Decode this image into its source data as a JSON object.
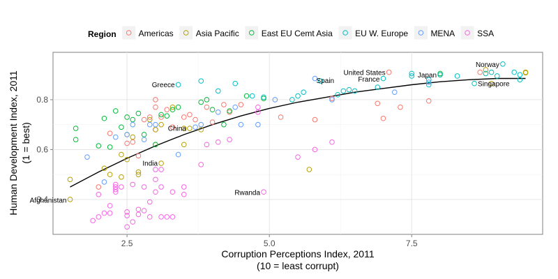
{
  "chart_data": {
    "type": "scatter",
    "xlabel": [
      "Corruption Perceptions Index, 2011",
      "(10 = least corrupt)"
    ],
    "ylabel": [
      "Human Development Index, 2011",
      "(1 = best)"
    ],
    "xlim": [
      1.2,
      9.8
    ],
    "ylim": [
      0.26,
      0.99
    ],
    "x_ticks": [
      2.5,
      5.0,
      7.5
    ],
    "x_tick_labels": [
      "2.5",
      "5.0",
      "7.5"
    ],
    "y_ticks": [
      0.4,
      0.6,
      0.8
    ],
    "y_tick_labels": [
      "0.4",
      "0.6",
      "0.8"
    ],
    "grid": true,
    "legend_placement": "top",
    "legend_title": "Region",
    "series": [
      {
        "name": "Americas",
        "color": "#F8766D",
        "points": [
          [
            2.2,
            0.665
          ],
          [
            2.5,
            0.625
          ],
          [
            2.6,
            0.63
          ],
          [
            2.7,
            0.575
          ],
          [
            2.8,
            0.72
          ],
          [
            2.9,
            0.73
          ],
          [
            3.0,
            0.8
          ],
          [
            3.0,
            0.77
          ],
          [
            3.0,
            0.68
          ],
          [
            3.1,
            0.73
          ],
          [
            3.2,
            0.76
          ],
          [
            3.3,
            0.69
          ],
          [
            3.5,
            0.73
          ],
          [
            3.6,
            0.74
          ],
          [
            3.7,
            0.72
          ],
          [
            3.9,
            0.77
          ],
          [
            4.0,
            0.71
          ],
          [
            4.2,
            0.78
          ],
          [
            4.3,
            0.75
          ],
          [
            4.5,
            0.78
          ],
          [
            5.2,
            0.73
          ],
          [
            5.8,
            0.72
          ],
          [
            6.1,
            0.805
          ],
          [
            6.9,
            0.785
          ],
          [
            7.0,
            0.725
          ],
          [
            7.3,
            0.77
          ],
          [
            7.8,
            0.795
          ],
          [
            7.1,
            0.91
          ],
          [
            8.7,
            0.91
          ],
          [
            2.0,
            0.45
          ]
        ]
      },
      {
        "name": "Asia Pacific",
        "color": "#B79F00",
        "points": [
          [
            1.5,
            0.48
          ],
          [
            1.5,
            0.4
          ],
          [
            2.1,
            0.525
          ],
          [
            2.2,
            0.5
          ],
          [
            2.4,
            0.49
          ],
          [
            2.4,
            0.58
          ],
          [
            2.5,
            0.56
          ],
          [
            2.5,
            0.66
          ],
          [
            2.6,
            0.65
          ],
          [
            2.7,
            0.51
          ],
          [
            2.7,
            0.5
          ],
          [
            2.9,
            0.72
          ],
          [
            3.0,
            0.62
          ],
          [
            3.0,
            0.68
          ],
          [
            3.1,
            0.545
          ],
          [
            3.1,
            0.7
          ],
          [
            3.3,
            0.77
          ],
          [
            3.5,
            0.685
          ],
          [
            3.5,
            0.62
          ],
          [
            3.6,
            0.685
          ],
          [
            3.8,
            0.68
          ],
          [
            5.7,
            0.52
          ],
          [
            8.0,
            0.9
          ],
          [
            8.8,
            0.92
          ],
          [
            8.9,
            0.865
          ],
          [
            9.5,
            0.908
          ],
          [
            9.5,
            0.91
          ]
        ]
      },
      {
        "name": "East EU Cemt Asia",
        "color": "#00BA38",
        "points": [
          [
            1.6,
            0.685
          ],
          [
            1.6,
            0.64
          ],
          [
            2.0,
            0.615
          ],
          [
            2.1,
            0.725
          ],
          [
            2.2,
            0.61
          ],
          [
            2.3,
            0.755
          ],
          [
            2.4,
            0.69
          ],
          [
            2.5,
            0.73
          ],
          [
            2.6,
            0.72
          ],
          [
            2.7,
            0.745
          ],
          [
            2.8,
            0.66
          ],
          [
            3.0,
            0.62
          ],
          [
            3.1,
            0.74
          ],
          [
            3.2,
            0.735
          ],
          [
            3.3,
            0.76
          ],
          [
            3.4,
            0.77
          ],
          [
            3.8,
            0.79
          ],
          [
            3.9,
            0.8
          ],
          [
            4.0,
            0.76
          ],
          [
            4.2,
            0.7
          ],
          [
            4.3,
            0.755
          ],
          [
            4.6,
            0.815
          ],
          [
            4.9,
            0.805
          ],
          [
            8.0,
            0.905
          ]
        ]
      },
      {
        "name": "EU W. Europe",
        "color": "#00BFC4",
        "points": [
          [
            3.4,
            0.86
          ],
          [
            3.8,
            0.875
          ],
          [
            4.1,
            0.835
          ],
          [
            4.4,
            0.865
          ],
          [
            4.7,
            0.815
          ],
          [
            4.9,
            0.81
          ],
          [
            5.4,
            0.8
          ],
          [
            5.5,
            0.815
          ],
          [
            5.6,
            0.83
          ],
          [
            5.9,
            0.875
          ],
          [
            6.2,
            0.82
          ],
          [
            6.3,
            0.835
          ],
          [
            6.4,
            0.84
          ],
          [
            6.5,
            0.835
          ],
          [
            6.9,
            0.85
          ],
          [
            7.0,
            0.885
          ],
          [
            7.5,
            0.905
          ],
          [
            7.5,
            0.895
          ],
          [
            7.8,
            0.88
          ],
          [
            7.8,
            0.86
          ],
          [
            8.0,
            0.9
          ],
          [
            8.3,
            0.895
          ],
          [
            8.6,
            0.865
          ],
          [
            8.8,
            0.905
          ],
          [
            8.9,
            0.91
          ],
          [
            9.1,
            0.943
          ],
          [
            9.3,
            0.91
          ],
          [
            9.4,
            0.9
          ],
          [
            9.4,
            0.88
          ],
          [
            9.0,
            0.895
          ]
        ]
      },
      {
        "name": "MENA",
        "color": "#619CFF",
        "points": [
          [
            1.8,
            0.57
          ],
          [
            2.1,
            0.47
          ],
          [
            2.3,
            0.65
          ],
          [
            2.5,
            0.66
          ],
          [
            2.6,
            0.7
          ],
          [
            2.8,
            0.64
          ],
          [
            2.9,
            0.7
          ],
          [
            3.0,
            0.7
          ],
          [
            3.4,
            0.58
          ],
          [
            3.7,
            0.69
          ],
          [
            3.8,
            0.7
          ],
          [
            4.1,
            0.75
          ],
          [
            4.4,
            0.77
          ],
          [
            4.5,
            0.7
          ],
          [
            4.8,
            0.7
          ],
          [
            5.1,
            0.8
          ],
          [
            5.8,
            0.885
          ],
          [
            6.1,
            0.8
          ],
          [
            7.2,
            0.83
          ],
          [
            7.8,
            0.87
          ]
        ]
      },
      {
        "name": "SSA",
        "color": "#F564E3",
        "points": [
          [
            1.9,
            0.315
          ],
          [
            2.0,
            0.33
          ],
          [
            2.0,
            0.42
          ],
          [
            2.1,
            0.345
          ],
          [
            2.2,
            0.375
          ],
          [
            2.2,
            0.345
          ],
          [
            2.3,
            0.43
          ],
          [
            2.3,
            0.44
          ],
          [
            2.3,
            0.46
          ],
          [
            2.3,
            0.45
          ],
          [
            2.4,
            0.45
          ],
          [
            2.5,
            0.29
          ],
          [
            2.5,
            0.335
          ],
          [
            2.5,
            0.35
          ],
          [
            2.6,
            0.31
          ],
          [
            2.6,
            0.46
          ],
          [
            2.7,
            0.36
          ],
          [
            2.7,
            0.34
          ],
          [
            2.8,
            0.355
          ],
          [
            2.8,
            0.45
          ],
          [
            2.9,
            0.39
          ],
          [
            3.0,
            0.43
          ],
          [
            3.0,
            0.48
          ],
          [
            3.0,
            0.52
          ],
          [
            3.1,
            0.52
          ],
          [
            3.1,
            0.45
          ],
          [
            3.2,
            0.33
          ],
          [
            3.3,
            0.33
          ],
          [
            3.3,
            0.43
          ],
          [
            3.5,
            0.42
          ],
          [
            3.5,
            0.45
          ],
          [
            3.8,
            0.54
          ],
          [
            3.9,
            0.62
          ],
          [
            4.1,
            0.63
          ],
          [
            4.3,
            0.64
          ],
          [
            4.8,
            0.75
          ],
          [
            4.8,
            0.77
          ],
          [
            5.5,
            0.57
          ],
          [
            5.8,
            0.6
          ],
          [
            6.1,
            0.63
          ],
          [
            4.9,
            0.43
          ],
          [
            3.1,
            0.33
          ],
          [
            2.9,
            0.33
          ]
        ]
      }
    ],
    "trend_line": [
      [
        1.5,
        0.45
      ],
      [
        2.0,
        0.51
      ],
      [
        2.5,
        0.565
      ],
      [
        3.0,
        0.615
      ],
      [
        3.5,
        0.66
      ],
      [
        4.0,
        0.7
      ],
      [
        4.5,
        0.735
      ],
      [
        5.0,
        0.765
      ],
      [
        5.5,
        0.79
      ],
      [
        6.0,
        0.81
      ],
      [
        6.5,
        0.83
      ],
      [
        7.0,
        0.845
      ],
      [
        7.5,
        0.86
      ],
      [
        8.0,
        0.872
      ],
      [
        8.5,
        0.88
      ],
      [
        9.0,
        0.885
      ],
      [
        9.5,
        0.885
      ]
    ],
    "annotations": [
      {
        "label": "Norway",
        "x": 9.1,
        "y": 0.943,
        "anchor": "end"
      },
      {
        "label": "United States",
        "x": 7.1,
        "y": 0.91,
        "anchor": "end"
      },
      {
        "label": "Japan",
        "x": 8.0,
        "y": 0.901,
        "anchor": "end"
      },
      {
        "label": "Spain",
        "x": 6.2,
        "y": 0.878,
        "anchor": "end"
      },
      {
        "label": "France",
        "x": 7.0,
        "y": 0.884,
        "anchor": "end"
      },
      {
        "label": "Singapore",
        "x": 8.6,
        "y": 0.866,
        "anchor": "start"
      },
      {
        "label": "Greece",
        "x": 3.4,
        "y": 0.861,
        "anchor": "end"
      },
      {
        "label": "China",
        "x": 3.6,
        "y": 0.687,
        "anchor": "end"
      },
      {
        "label": "India",
        "x": 3.1,
        "y": 0.547,
        "anchor": "end"
      },
      {
        "label": "Rwanda",
        "x": 4.9,
        "y": 0.429,
        "anchor": "end"
      },
      {
        "label": "Afghanistan",
        "x": 1.5,
        "y": 0.398,
        "anchor": "end"
      }
    ]
  }
}
